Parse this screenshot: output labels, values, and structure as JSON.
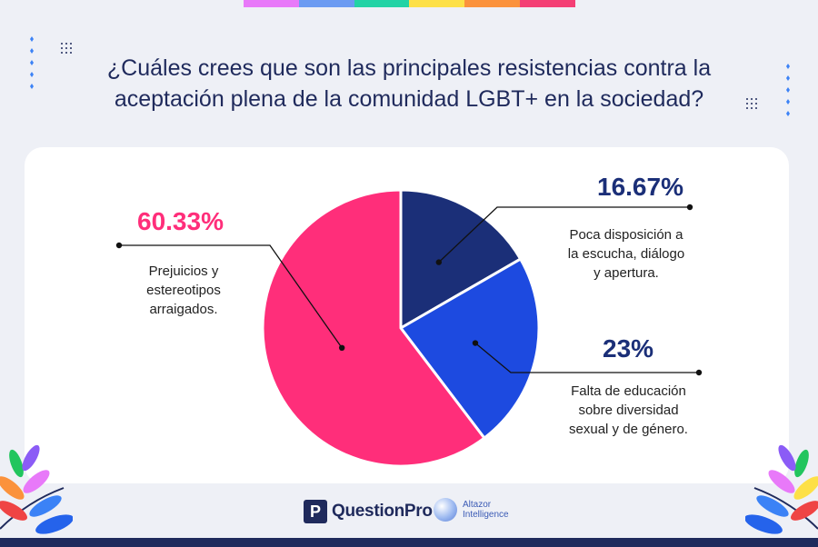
{
  "title_lines": [
    "¿Cuáles crees que son las principales resistencias contra la",
    "aceptación plena de la comunidad LGBT+ en la sociedad?"
  ],
  "rainbow_colors": [
    "#e879f9",
    "#6b9bf2",
    "#22d3a5",
    "#fde047",
    "#fb923c",
    "#f43f75"
  ],
  "chart_data": {
    "type": "pie",
    "title": "¿Cuáles crees que son las principales resistencias contra la aceptación plena de la comunidad LGBT+ en la sociedad?",
    "slices": [
      {
        "key": "disposicion",
        "value": 16.67,
        "display": "16.67%",
        "label_lines": [
          "Poca disposición a",
          "la escucha, diálogo",
          "y apertura."
        ],
        "color": "#1b2f78"
      },
      {
        "key": "educacion",
        "value": 23,
        "display": "23%",
        "label_lines": [
          "Falta de educación",
          "sobre diversidad",
          "sexual y de género."
        ],
        "color": "#1d4ae0"
      },
      {
        "key": "prejuicios",
        "value": 60.33,
        "display": "60.33%",
        "label_lines": [
          "Prejuicios y",
          "estereotipos",
          "arraigados."
        ],
        "color": "#ff2e7a"
      }
    ]
  },
  "logos": {
    "questionpro": {
      "mark": "P",
      "name": "QuestionPro"
    },
    "altazor": {
      "line1": "Altazor",
      "line2": "Intelligence"
    }
  }
}
